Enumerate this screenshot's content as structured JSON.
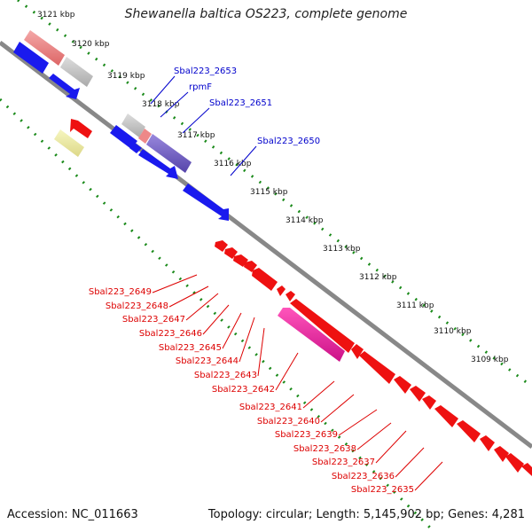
{
  "title": "Shewanella baltica OS223, complete genome",
  "footer": {
    "accession": "Accession: NC_011663",
    "summary": "Topology: circular; Length: 5,145,902 bp; Genes: 4,281"
  },
  "ticks": [
    "3121 kbp",
    "3120 kbp",
    "3119 kbp",
    "3118 kbp",
    "3117 kbp",
    "3116 kbp",
    "3115 kbp",
    "3114 kbp",
    "3113 kbp",
    "3112 kbp",
    "3111 kbp",
    "3110 kbp",
    "3109 kbp"
  ],
  "labels_top": [
    "Sbal223_2653",
    "rpmF",
    "Sbal223_2651",
    "Sbal223_2650"
  ],
  "labels_bottom": [
    "Sbal223_2649",
    "Sbal223_2648",
    "Sbal223_2647",
    "Sbal223_2646",
    "Sbal223_2645",
    "Sbal223_2644",
    "Sbal223_2643",
    "Sbal223_2642",
    "Sbal223_2641",
    "Sbal223_2640",
    "Sbal223_2639",
    "Sbal223_2638",
    "Sbal223_2637",
    "Sbal223_2636",
    "Sbal223_2635"
  ],
  "colors": {
    "backbone": "#888888",
    "tick_ring": "#1a8a1a",
    "forward_cds": "#0000ee",
    "reverse_cds": "#ee0000",
    "label_top": "#0000cc",
    "label_bottom": "#dd0000",
    "rna_pink": "#ee8888",
    "gray_feature": "#bbbbbb",
    "purple_feature": "#7766cc",
    "magenta_feature": "#ee2299",
    "yellow_feature": "#eeee99"
  }
}
